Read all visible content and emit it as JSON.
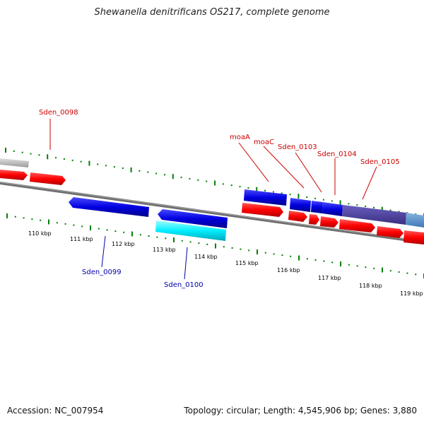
{
  "title": "Shewanella denitrificans OS217, complete genome",
  "footer": {
    "accession": "Accession: NC_007954",
    "stats": "Topology: circular; Length: 4,545,906 bp; Genes: 3,880"
  },
  "ticks": [
    "110 kbp",
    "111 kbp",
    "112 kbp",
    "113 kbp",
    "114 kbp",
    "115 kbp",
    "116 kbp",
    "117 kbp",
    "118 kbp",
    "119 kbp"
  ],
  "gene_labels": {
    "sden_0098": "Sden_0098",
    "moaA": "moaA",
    "moaC": "moaC",
    "sden_0103": "Sden_0103",
    "sden_0104": "Sden_0104",
    "sden_0105": "Sden_0105",
    "sden_0099": "Sden_0099",
    "sden_0100": "Sden_0100"
  },
  "colors": {
    "cds": "#ff0000",
    "forward_gene": "#0000dd",
    "reverse_gene": "#0000dd",
    "rna": "#00e5ee",
    "pseudo": "#bfbfbf",
    "operon_dark": "#4b3f9a",
    "operon_light": "#5b8fc8",
    "label_top": "#cc0000",
    "label_bottom": "#0000aa",
    "tick": "#008000",
    "backbone": "#777777"
  }
}
